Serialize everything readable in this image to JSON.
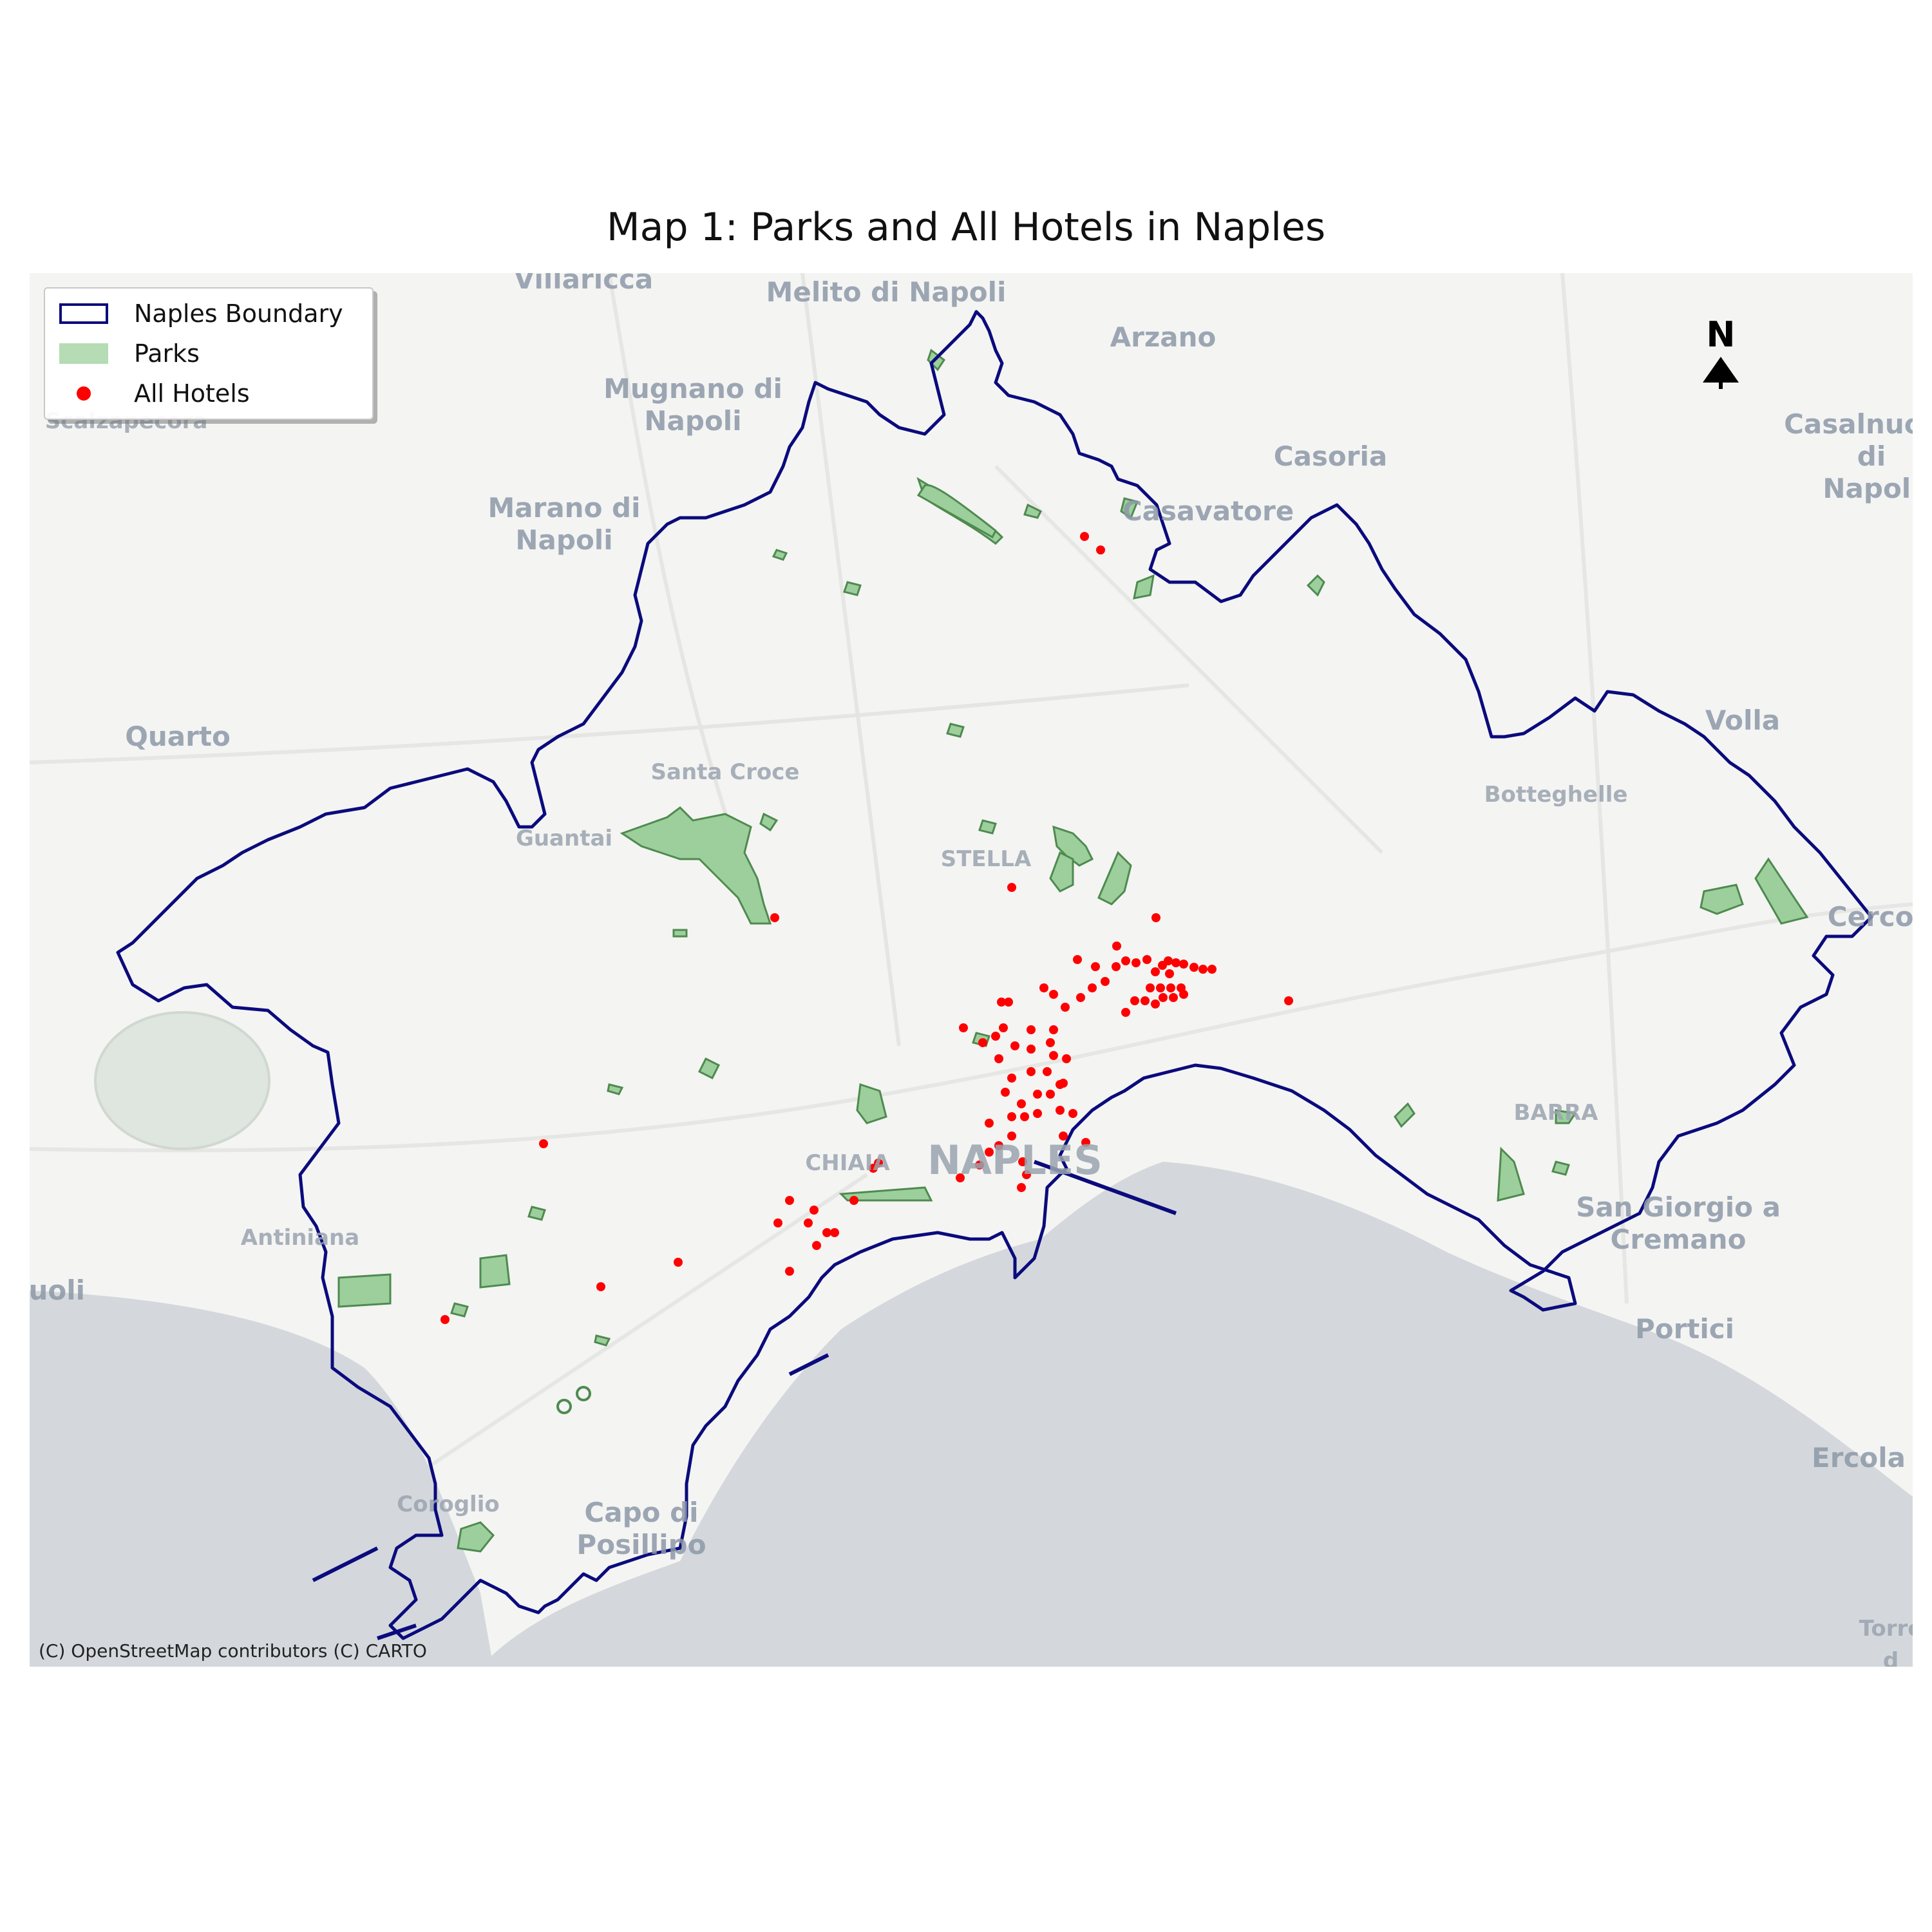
{
  "title": "Map 1: Parks and All Hotels in Naples",
  "colors": {
    "boundary": "#0b0b7d",
    "park_fill": "#9ccf9c",
    "park_edge": "#4f8a4f",
    "hotel": "#ff0000",
    "sea": "#d4d8dc",
    "land": "#f4f4f3"
  },
  "legend": {
    "items": [
      {
        "label": "Naples Boundary",
        "symbol": "boundary-outline"
      },
      {
        "label": "Parks",
        "symbol": "park-patch"
      },
      {
        "label": "All Hotels",
        "symbol": "hotel-dot"
      }
    ]
  },
  "north_arrow": {
    "label": "N"
  },
  "attribution": "(C) OpenStreetMap contributors (C) CARTO",
  "places": [
    "Villaricca",
    "Melito di Napoli",
    "Arzano",
    "Mugnano di\nNapoli",
    "Scalzapecora",
    "Casoria",
    "Marano di\nNapoli",
    "Casavatore",
    "Casalnuovo di\nNapoli",
    "Quarto",
    "Santa Croce",
    "Volla",
    "Botteghelle",
    "Guantai",
    "STELLA",
    "Cercola",
    "CHIAIA",
    "NAPLES",
    "BARRA",
    "San Giorgio a\nCremano",
    "Antiniana",
    "zuoli",
    "Portici",
    "Ercola",
    "Coroglio",
    "Capo di\nPosillipo",
    "Torre d"
  ],
  "layers": {
    "boundary": "Naples Boundary",
    "parks": "Parks",
    "hotels": "All Hotels"
  }
}
